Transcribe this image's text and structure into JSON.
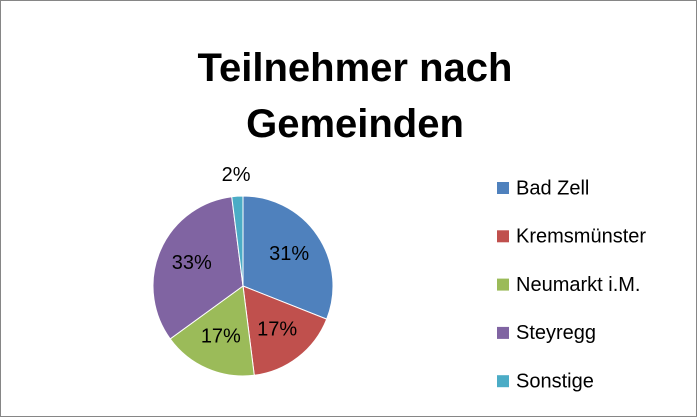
{
  "chart_data": {
    "type": "pie",
    "title": "Teilnehmer nach Gemeinden",
    "categories": [
      "Bad Zell",
      "Kremsmünster",
      "Neumarkt i.M.",
      "Steyregg",
      "Sonstige"
    ],
    "values": [
      31,
      17,
      17,
      33,
      2
    ],
    "value_labels": [
      "31%",
      "17%",
      "17%",
      "33%",
      "2%"
    ],
    "colors": [
      "#4f81bd",
      "#c0504d",
      "#9bbb59",
      "#8064a2",
      "#4bacc6"
    ],
    "legend": "right"
  }
}
